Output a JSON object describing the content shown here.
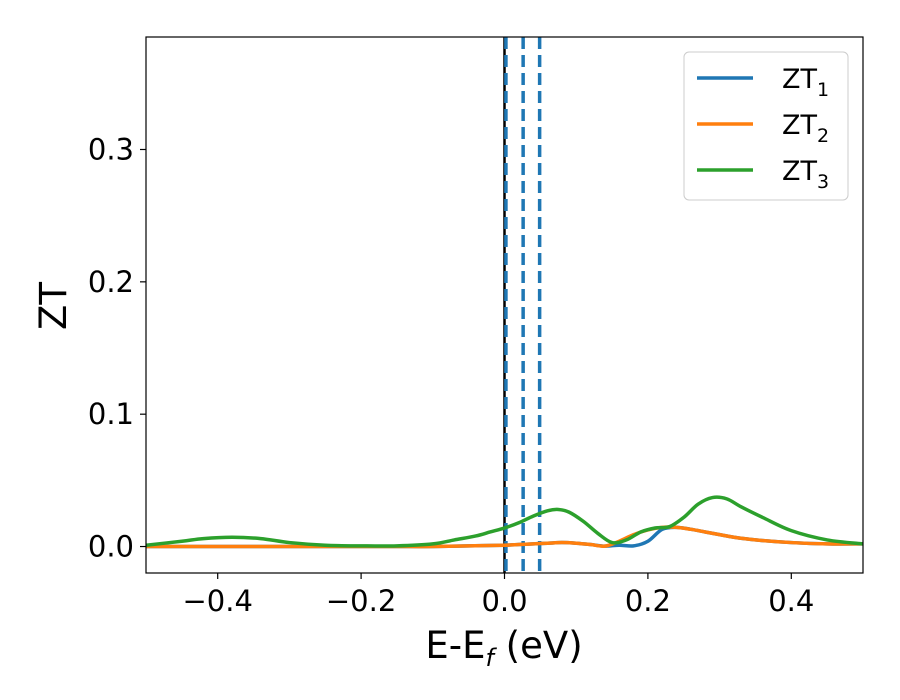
{
  "chart_data": {
    "type": "line",
    "title": "",
    "xlabel": "E-E",
    "xlabel_sub": "f",
    "xlabel_unit": " (eV)",
    "ylabel": "ZT",
    "xlim": [
      -0.5,
      0.5
    ],
    "ylim": [
      -0.02,
      0.385
    ],
    "grid": false,
    "legend_position": "top-right",
    "x_ticks": [
      -0.4,
      -0.2,
      0.0,
      0.2,
      0.4
    ],
    "x_tick_labels": [
      "−0.4",
      "−0.2",
      "0.0",
      "0.2",
      "0.4"
    ],
    "y_ticks": [
      0.0,
      0.1,
      0.2,
      0.3
    ],
    "y_tick_labels": [
      "0.0",
      "0.1",
      "0.2",
      "0.3"
    ],
    "vertical_lines": [
      {
        "x": 0.0,
        "style": "solid",
        "color": "#000000"
      },
      {
        "x": 0.002,
        "style": "dashed",
        "color": "#1f77b4"
      },
      {
        "x": 0.026,
        "style": "dashed",
        "color": "#1f77b4"
      },
      {
        "x": 0.049,
        "style": "dashed",
        "color": "#1f77b4"
      }
    ],
    "series": [
      {
        "name": "ZT",
        "subscript": "1",
        "color": "#1f77b4",
        "x": [
          -0.5,
          -0.45,
          -0.4,
          -0.35,
          -0.3,
          -0.25,
          -0.2,
          -0.15,
          -0.1,
          -0.05,
          0.0,
          0.02,
          0.04,
          0.06,
          0.08,
          0.1,
          0.12,
          0.14,
          0.16,
          0.18,
          0.2,
          0.22,
          0.24,
          0.26,
          0.28,
          0.3,
          0.32,
          0.35,
          0.4,
          0.45,
          0.5
        ],
        "y": [
          0.0,
          0.0,
          0.0,
          0.0,
          0.0,
          0.0,
          0.0,
          0.0,
          0.0,
          0.0005,
          0.001,
          0.0015,
          0.002,
          0.0025,
          0.003,
          0.0025,
          0.0015,
          0.0003,
          0.001,
          0.0005,
          0.004,
          0.013,
          0.0145,
          0.013,
          0.011,
          0.009,
          0.007,
          0.005,
          0.003,
          0.002,
          0.002
        ]
      },
      {
        "name": "ZT",
        "subscript": "2",
        "color": "#ff7f0e",
        "x": [
          -0.5,
          -0.45,
          -0.4,
          -0.35,
          -0.3,
          -0.25,
          -0.2,
          -0.15,
          -0.1,
          -0.05,
          0.0,
          0.02,
          0.04,
          0.06,
          0.08,
          0.1,
          0.12,
          0.14,
          0.16,
          0.18,
          0.2,
          0.22,
          0.24,
          0.26,
          0.28,
          0.3,
          0.32,
          0.35,
          0.4,
          0.45,
          0.5
        ],
        "y": [
          0.0,
          0.0,
          0.0,
          0.0,
          0.0,
          0.0,
          0.0,
          0.0,
          0.0,
          0.0005,
          0.001,
          0.0015,
          0.002,
          0.0025,
          0.003,
          0.0025,
          0.0015,
          0.0003,
          0.004,
          0.009,
          0.0125,
          0.0145,
          0.0145,
          0.013,
          0.011,
          0.009,
          0.007,
          0.005,
          0.003,
          0.002,
          0.002
        ]
      },
      {
        "name": "ZT",
        "subscript": "3",
        "color": "#2ca02c",
        "x": [
          -0.5,
          -0.45,
          -0.42,
          -0.38,
          -0.34,
          -0.3,
          -0.25,
          -0.2,
          -0.15,
          -0.1,
          -0.07,
          -0.04,
          -0.02,
          0.0,
          0.02,
          0.04,
          0.06,
          0.075,
          0.09,
          0.11,
          0.13,
          0.15,
          0.17,
          0.19,
          0.21,
          0.23,
          0.25,
          0.27,
          0.29,
          0.31,
          0.33,
          0.36,
          0.4,
          0.45,
          0.5
        ],
        "y": [
          0.001,
          0.004,
          0.006,
          0.007,
          0.006,
          0.003,
          0.001,
          0.0005,
          0.0005,
          0.002,
          0.005,
          0.008,
          0.011,
          0.014,
          0.018,
          0.023,
          0.027,
          0.028,
          0.026,
          0.019,
          0.01,
          0.003,
          0.005,
          0.011,
          0.014,
          0.015,
          0.022,
          0.032,
          0.037,
          0.036,
          0.03,
          0.022,
          0.012,
          0.005,
          0.002
        ]
      }
    ]
  }
}
